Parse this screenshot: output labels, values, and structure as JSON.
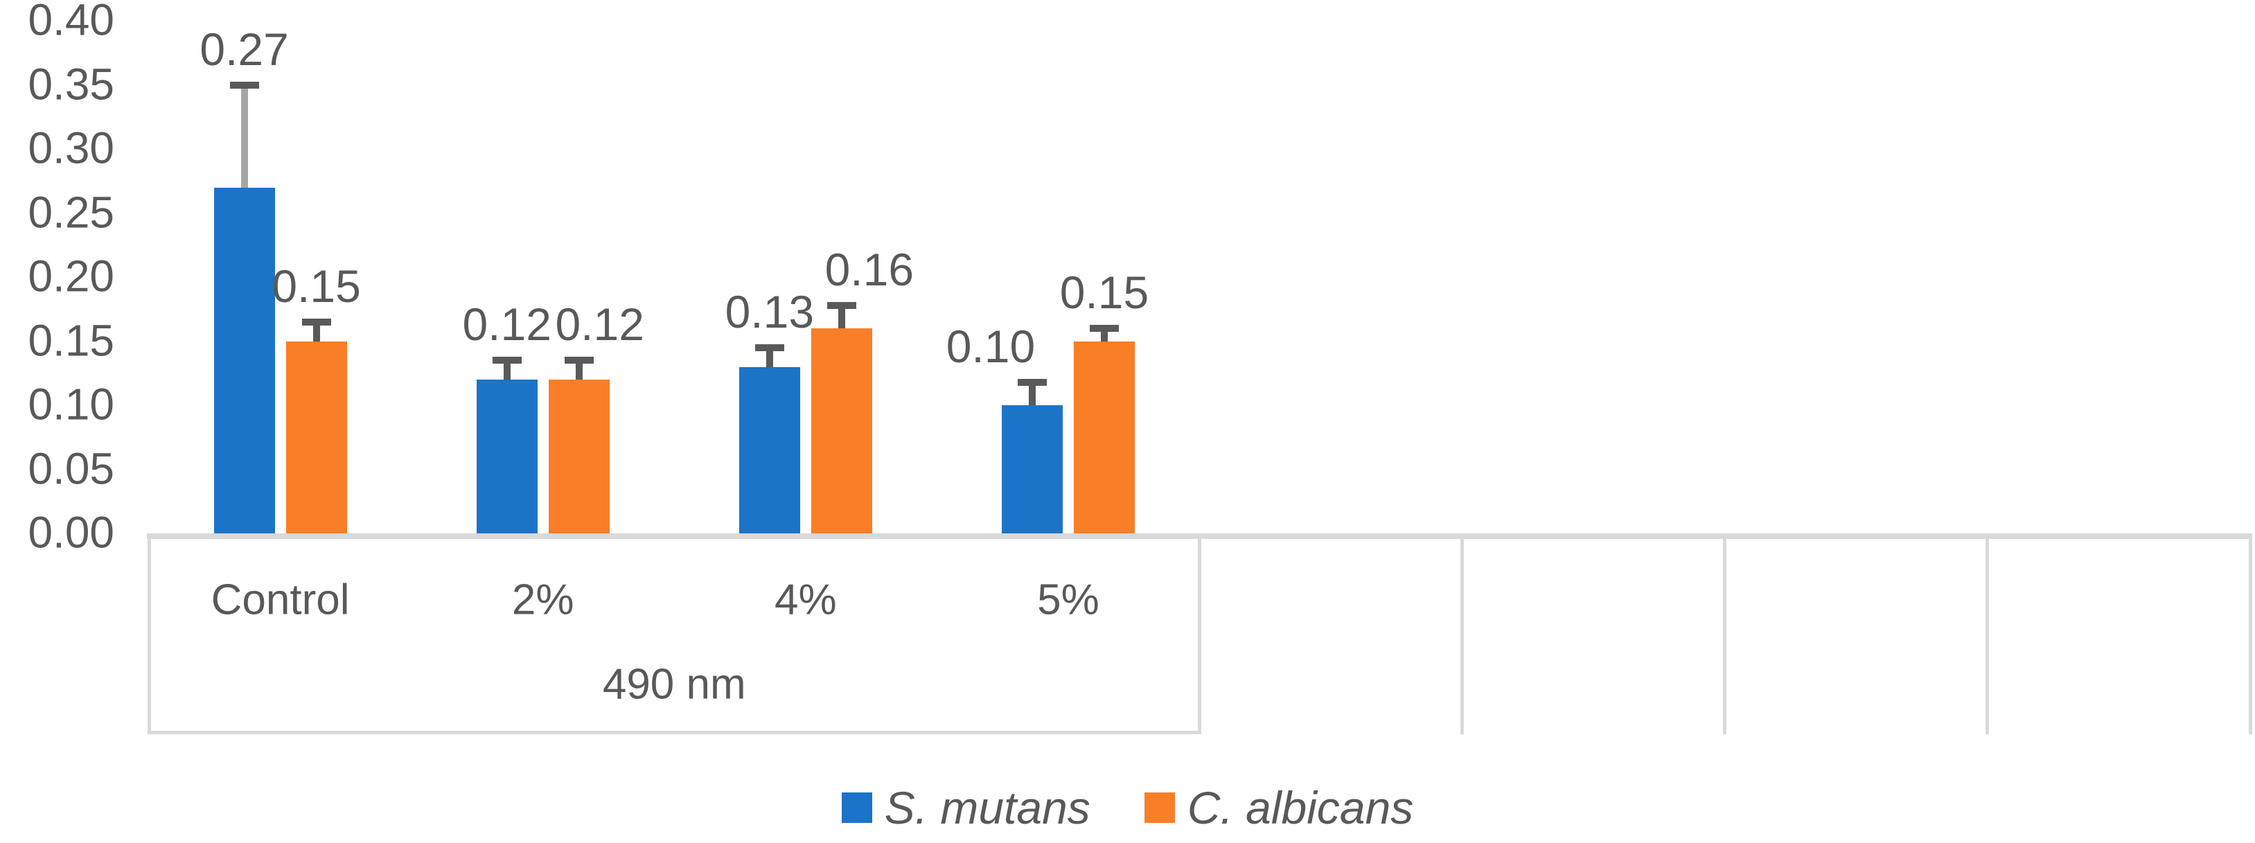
{
  "chart_data": {
    "type": "bar",
    "title": "",
    "categories": [
      "Control",
      "2%",
      "4%",
      "5%"
    ],
    "outer_category_label": "490 nm",
    "series": [
      {
        "name": "S. mutans",
        "color": "#1B74C8",
        "values": [
          0.27,
          0.12,
          0.13,
          0.1
        ],
        "value_labels": [
          "0.27",
          "0.12",
          "0.13",
          "0.10"
        ],
        "errors_plus": [
          0.08,
          0.015,
          0.015,
          0.018
        ],
        "error_line_colors": [
          "#A6A6A6",
          "#595959",
          "#595959",
          "#595959"
        ],
        "label_dx": [
          0,
          0,
          0,
          -60
        ]
      },
      {
        "name": "C. albicans",
        "color": "#FA7E26",
        "values": [
          0.15,
          0.12,
          0.16,
          0.15
        ],
        "value_labels": [
          "0.15",
          "0.12",
          "0.16",
          "0.15"
        ],
        "errors_plus": [
          0.015,
          0.015,
          0.018,
          0.01
        ],
        "error_line_colors": [
          "#595959",
          "#595959",
          "#595959",
          "#595959"
        ],
        "label_dx": [
          0,
          30,
          40,
          0
        ]
      }
    ],
    "ylim": [
      0,
      0.4
    ],
    "ytick_step": 0.05,
    "ytick_labels": [
      "0.40",
      "0.35",
      "0.30",
      "0.25",
      "0.20",
      "0.15",
      "0.10",
      "0.05",
      "0.00"
    ],
    "n_category_slots": 8,
    "grid": "vertical category dividers below axis only, no plot gridlines",
    "legend": {
      "position": "bottom-center",
      "italic": true,
      "items": [
        "S. mutans",
        "C. albicans"
      ]
    },
    "colors": {
      "error_cap": "#595959",
      "axis_line": "#D9D9D9",
      "box_border": "#D9D9D9",
      "text": "#595959",
      "background": "#FFFFFF"
    }
  }
}
